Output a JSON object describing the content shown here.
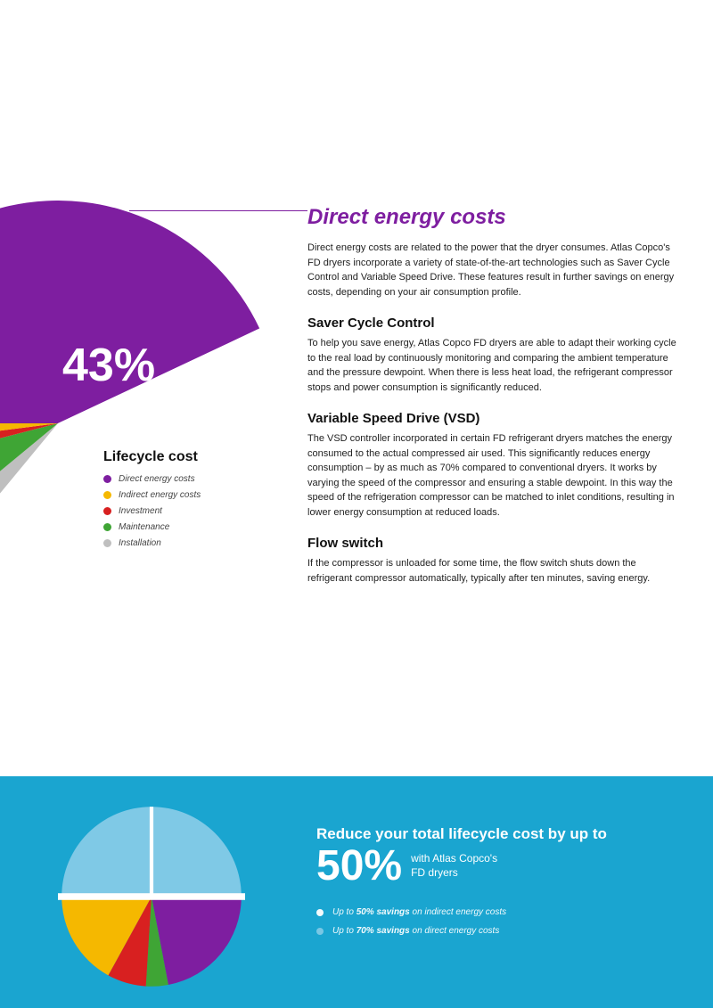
{
  "colors": {
    "purple": "#7e1ea0",
    "yellow": "#f5b800",
    "red": "#d82020",
    "green": "#3fa535",
    "grey": "#bfbfbf",
    "cyan": "#1aa5d0",
    "lightblue": "#7fc9e6",
    "white": "#ffffff"
  },
  "top_pie": {
    "percent_label": "43%",
    "slices": [
      {
        "value": 43,
        "color": "#7e1ea0"
      },
      {
        "value": 43,
        "color": "#ffffff"
      },
      {
        "value": 3,
        "color": "#bfbfbf"
      },
      {
        "value": 7,
        "color": "#3fa535"
      },
      {
        "value": 2,
        "color": "#d82020"
      },
      {
        "value": 2,
        "color": "#f5b800"
      }
    ],
    "start_angle": -90
  },
  "legend": {
    "title": "Lifecycle cost",
    "items": [
      {
        "label": "Direct energy costs",
        "color": "#7e1ea0"
      },
      {
        "label": "Indirect energy costs",
        "color": "#f5b800"
      },
      {
        "label": "Investment",
        "color": "#d82020"
      },
      {
        "label": "Maintenance",
        "color": "#3fa535"
      },
      {
        "label": "Installation",
        "color": "#bfbfbf"
      }
    ]
  },
  "text": {
    "main_title": "Direct energy costs",
    "intro": "Direct energy costs are related to the power that the dryer consumes. Atlas Copco's FD dryers incorporate a variety of state-of-the-art technologies such as Saver Cycle Control and Variable Speed Drive. These features result in further savings on energy costs, depending on your air consumption profile.",
    "h1": "Saver Cycle Control",
    "p1": "To help you save energy, Atlas Copco FD dryers are able to adapt their working cycle to the real load by continuously monitoring and comparing the ambient temperature and the pressure dewpoint. When there is less heat load, the refrigerant compressor stops and power consumption is significantly reduced.",
    "h2": "Variable Speed Drive (VSD)",
    "p2": "The VSD controller incorporated in certain FD refrigerant dryers matches the energy consumed to the actual compressed air used. This significantly reduces energy consumption – by as much as 70% compared to conventional dryers. It works by varying the speed of the compressor and ensuring a stable dewpoint. In this way the speed of the refrigeration compressor can be matched to inlet conditions, resulting in lower energy consumption at reduced loads.",
    "h3": "Flow switch",
    "p3": "If the compressor is unloaded for some time, the flow switch shuts down the refrigerant compressor automatically, typically after ten minutes, saving energy."
  },
  "bottom": {
    "bg_color": "#1aa5d0",
    "reduce_line": "Reduce your total lifecycle cost by up to",
    "fifty": "50%",
    "fifty_sub1": "with Atlas Copco's",
    "fifty_sub2": "FD dryers",
    "bullets": [
      {
        "color": "#ffffff",
        "html": "Up to <b>50% savings</b> on indirect energy costs"
      },
      {
        "color": "#7fc9e6",
        "html": "Up to <b>70% savings</b> on direct energy costs"
      }
    ],
    "pie": {
      "slices": [
        {
          "value": 25,
          "color": "#1aa5d0",
          "lighten": "#7fc9e6"
        },
        {
          "value": 25,
          "color": "#7fc9e6"
        },
        {
          "value": 22,
          "color": "#7e1ea0"
        },
        {
          "value": 4,
          "color": "#3fa535"
        },
        {
          "value": 7,
          "color": "#d82020"
        },
        {
          "value": 17,
          "color": "#f5b800"
        }
      ],
      "top_overlay_color": "#7fc9e6",
      "gap_color": "#ffffff"
    }
  }
}
